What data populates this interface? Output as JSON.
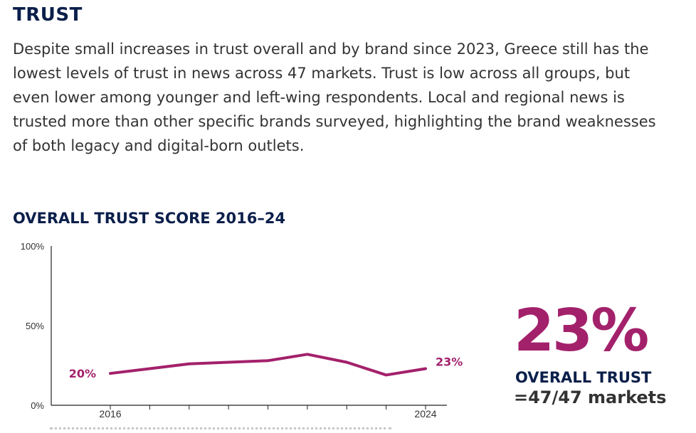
{
  "section": {
    "title": "TRUST",
    "intro": "Despite small increases in trust overall and by brand since 2023, Greece still has the lowest levels of trust in news across 47 markets. Trust is low across all groups, but even lower among younger and left-wing respondents. Local and regional news is trusted more than other specific brands surveyed, highlighting the brand weaknesses of both legacy and digital-born outlets."
  },
  "kpi": {
    "value": "23%",
    "label": "OVERALL TRUST",
    "rank": "=47/47 markets"
  },
  "colors": {
    "accent": "#a3216b",
    "navy": "#0b1f4a"
  },
  "chart_data": {
    "type": "line",
    "title": "OVERALL TRUST SCORE 2016–24",
    "x": [
      2016,
      2017,
      2018,
      2019,
      2020,
      2021,
      2022,
      2023,
      2024
    ],
    "series": [
      {
        "values": [
          20,
          23,
          26,
          27,
          28,
          32,
          27,
          19,
          23
        ]
      }
    ],
    "ylim": [
      0,
      100
    ],
    "yticks": [
      "0%",
      "50%",
      "100%"
    ],
    "xticks_labeled": [
      "2016",
      "2024"
    ],
    "data_labels": [
      {
        "x": 2016,
        "text": "20%"
      },
      {
        "x": 2024,
        "text": "23%"
      }
    ],
    "grid": false,
    "legend": "none"
  }
}
